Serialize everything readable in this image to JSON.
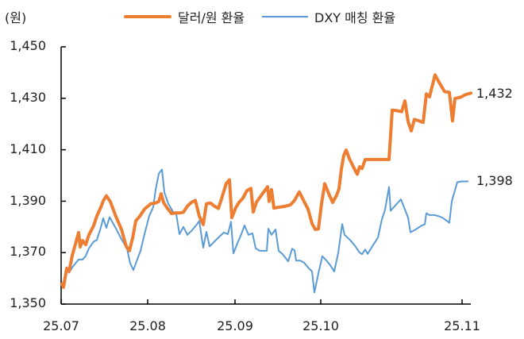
{
  "chart_data": {
    "type": "line",
    "title": "",
    "ylabel": "(원)",
    "xlabel": "",
    "ylim": [
      1350,
      1450
    ],
    "yticks": [
      "1,350",
      "1,370",
      "1,390",
      "1,410",
      "1,430",
      "1,450"
    ],
    "xticks": [
      "25.07",
      "25.08",
      "25.09",
      "25.10",
      "25.11"
    ],
    "grid": false,
    "legend_position": "top",
    "series": [
      {
        "name": "달러/원 환율",
        "color": "#ED7D31",
        "end_label": "1,432",
        "points": [
          [
            78,
            1357.8
          ],
          [
            80,
            1356.5
          ],
          [
            84,
            1363.9
          ],
          [
            87,
            1362.7
          ],
          [
            91,
            1368.9
          ],
          [
            99,
            1377.8
          ],
          [
            101,
            1372.2
          ],
          [
            104,
            1374.7
          ],
          [
            108,
            1373.1
          ],
          [
            112,
            1376.9
          ],
          [
            118,
            1380.5
          ],
          [
            122,
            1384.3
          ],
          [
            127,
            1387.6
          ],
          [
            130,
            1390.1
          ],
          [
            134,
            1392.1
          ],
          [
            139,
            1389.8
          ],
          [
            146,
            1384.0
          ],
          [
            153,
            1379.0
          ],
          [
            159,
            1372.4
          ],
          [
            163,
            1370.7
          ],
          [
            167,
            1375.6
          ],
          [
            171,
            1382.3
          ],
          [
            176,
            1384.1
          ],
          [
            182,
            1386.9
          ],
          [
            190,
            1389.0
          ],
          [
            196,
            1389.3
          ],
          [
            200,
            1389.9
          ],
          [
            203,
            1392.9
          ],
          [
            206,
            1389.5
          ],
          [
            210,
            1387.6
          ],
          [
            216,
            1385.2
          ],
          [
            220,
            1385.4
          ],
          [
            226,
            1385.4
          ],
          [
            231,
            1385.7
          ],
          [
            236,
            1388.1
          ],
          [
            241,
            1389.5
          ],
          [
            246,
            1390.3
          ],
          [
            251,
            1384.2
          ],
          [
            256,
            1380.9
          ],
          [
            260,
            1389.0
          ],
          [
            265,
            1389.3
          ],
          [
            270,
            1388.1
          ],
          [
            275,
            1387.2
          ],
          [
            279,
            1390.9
          ],
          [
            285,
            1396.9
          ],
          [
            289,
            1398.3
          ],
          [
            292,
            1383.6
          ],
          [
            297,
            1387.5
          ],
          [
            301,
            1389.5
          ],
          [
            306,
            1391.2
          ],
          [
            311,
            1394.1
          ],
          [
            316,
            1395.0
          ],
          [
            319,
            1385.8
          ],
          [
            323,
            1389.6
          ],
          [
            328,
            1391.8
          ],
          [
            332,
            1393.5
          ],
          [
            337,
            1395.6
          ],
          [
            339,
            1389.9
          ],
          [
            342,
            1394.5
          ],
          [
            345,
            1387.3
          ],
          [
            350,
            1387.6
          ],
          [
            355,
            1387.8
          ],
          [
            360,
            1388.1
          ],
          [
            366,
            1388.6
          ],
          [
            371,
            1390.3
          ],
          [
            377,
            1393.6
          ],
          [
            382,
            1390.5
          ],
          [
            388,
            1386.9
          ],
          [
            393,
            1381.3
          ],
          [
            397,
            1379.0
          ],
          [
            401,
            1379.2
          ],
          [
            405,
            1389.0
          ],
          [
            409,
            1396.8
          ],
          [
            414,
            1393.0
          ],
          [
            419,
            1389.5
          ],
          [
            424,
            1392.3
          ],
          [
            427,
            1394.8
          ],
          [
            430,
            1402.5
          ],
          [
            433,
            1407.8
          ],
          [
            436,
            1409.9
          ],
          [
            440,
            1406.5
          ],
          [
            446,
            1402.8
          ],
          [
            450,
            1400.5
          ],
          [
            453,
            1403.4
          ],
          [
            456,
            1402.7
          ],
          [
            460,
            1406.2
          ],
          [
            467,
            1406.2
          ],
          [
            475,
            1406.2
          ],
          [
            482,
            1406.2
          ],
          [
            490,
            1406.2
          ],
          [
            494,
            1425.4
          ],
          [
            500,
            1425.2
          ],
          [
            506,
            1424.8
          ],
          [
            510,
            1429.0
          ],
          [
            514,
            1421.0
          ],
          [
            518,
            1417.3
          ],
          [
            522,
            1421.8
          ],
          [
            527,
            1421.3
          ],
          [
            533,
            1420.6
          ],
          [
            537,
            1431.7
          ],
          [
            541,
            1430.6
          ],
          [
            548,
            1439.1
          ],
          [
            553,
            1436.2
          ],
          [
            560,
            1432.6
          ],
          [
            566,
            1432.3
          ],
          [
            570,
            1421.2
          ],
          [
            573,
            1429.9
          ],
          [
            580,
            1430.4
          ],
          [
            587,
            1431.5
          ],
          [
            593,
            1432.0
          ]
        ]
      },
      {
        "name": "DXY 매칭 환율",
        "color": "#5B9BD5",
        "end_label": "1,398",
        "points": [
          [
            78,
            1357.2
          ],
          [
            80,
            1358.9
          ],
          [
            84,
            1364.3
          ],
          [
            87,
            1362.2
          ],
          [
            91,
            1364.3
          ],
          [
            99,
            1367.3
          ],
          [
            104,
            1367.3
          ],
          [
            108,
            1368.7
          ],
          [
            112,
            1371.7
          ],
          [
            118,
            1374.3
          ],
          [
            122,
            1374.9
          ],
          [
            127,
            1379.8
          ],
          [
            130,
            1383.4
          ],
          [
            134,
            1379.6
          ],
          [
            138,
            1383.8
          ],
          [
            146,
            1379.4
          ],
          [
            153,
            1375.2
          ],
          [
            160,
            1371.5
          ],
          [
            164,
            1365.8
          ],
          [
            168,
            1363.2
          ],
          [
            172,
            1366.6
          ],
          [
            177,
            1370.7
          ],
          [
            182,
            1377.2
          ],
          [
            188,
            1384.3
          ],
          [
            193,
            1387.7
          ],
          [
            196,
            1394.4
          ],
          [
            200,
            1400.7
          ],
          [
            204,
            1402.3
          ],
          [
            207,
            1393.4
          ],
          [
            212,
            1389.0
          ],
          [
            218,
            1385.8
          ],
          [
            222,
            1385.0
          ],
          [
            226,
            1377.2
          ],
          [
            231,
            1380.0
          ],
          [
            236,
            1376.9
          ],
          [
            241,
            1378.4
          ],
          [
            248,
            1381.0
          ],
          [
            251,
            1382.3
          ],
          [
            256,
            1371.9
          ],
          [
            260,
            1378.1
          ],
          [
            264,
            1372.4
          ],
          [
            270,
            1374.3
          ],
          [
            276,
            1376.1
          ],
          [
            282,
            1377.8
          ],
          [
            287,
            1377.2
          ],
          [
            291,
            1382.0
          ],
          [
            294,
            1369.7
          ],
          [
            299,
            1373.6
          ],
          [
            304,
            1377.2
          ],
          [
            308,
            1380.6
          ],
          [
            313,
            1376.9
          ],
          [
            318,
            1377.5
          ],
          [
            322,
            1371.7
          ],
          [
            327,
            1370.7
          ],
          [
            332,
            1370.7
          ],
          [
            336,
            1370.7
          ],
          [
            338,
            1379.3
          ],
          [
            342,
            1376.9
          ],
          [
            347,
            1379.0
          ],
          [
            351,
            1370.7
          ],
          [
            356,
            1369.4
          ],
          [
            363,
            1366.6
          ],
          [
            368,
            1371.5
          ],
          [
            371,
            1370.9
          ],
          [
            373,
            1366.9
          ],
          [
            378,
            1366.9
          ],
          [
            383,
            1366.1
          ],
          [
            389,
            1363.9
          ],
          [
            393,
            1362.7
          ],
          [
            396,
            1354.5
          ],
          [
            401,
            1361.9
          ],
          [
            406,
            1368.6
          ],
          [
            411,
            1367.0
          ],
          [
            416,
            1365.1
          ],
          [
            421,
            1362.7
          ],
          [
            426,
            1369.9
          ],
          [
            431,
            1381.1
          ],
          [
            434,
            1376.9
          ],
          [
            441,
            1374.9
          ],
          [
            447,
            1372.7
          ],
          [
            453,
            1370.0
          ],
          [
            456,
            1369.4
          ],
          [
            460,
            1371.2
          ],
          [
            463,
            1369.5
          ],
          [
            469,
            1372.5
          ],
          [
            476,
            1375.8
          ],
          [
            481,
            1382.9
          ],
          [
            485,
            1386.7
          ],
          [
            490,
            1395.5
          ],
          [
            492,
            1386.3
          ],
          [
            499,
            1388.7
          ],
          [
            505,
            1390.7
          ],
          [
            510,
            1386.8
          ],
          [
            514,
            1383.6
          ],
          [
            517,
            1377.9
          ],
          [
            523,
            1378.9
          ],
          [
            531,
            1380.5
          ],
          [
            535,
            1381.0
          ],
          [
            537,
            1385.3
          ],
          [
            541,
            1384.6
          ],
          [
            548,
            1384.6
          ],
          [
            553,
            1384.1
          ],
          [
            557,
            1383.6
          ],
          [
            566,
            1381.6
          ],
          [
            569,
            1389.9
          ],
          [
            576,
            1397.4
          ],
          [
            582,
            1397.7
          ],
          [
            590,
            1397.7
          ]
        ]
      }
    ]
  },
  "header": {
    "unit_label": "(원)"
  },
  "legend": {
    "item1": "달러/원 환율",
    "item2": "DXY 매칭 환율"
  },
  "axes": {
    "y_labels": [
      "1,450",
      "1,430",
      "1,410",
      "1,390",
      "1,370",
      "1,350"
    ],
    "x_labels": [
      "25.07",
      "25.08",
      "25.09",
      "25.10",
      "25.11"
    ]
  },
  "end_labels": {
    "usdkrw": "1,432",
    "dxy": "1,398"
  }
}
